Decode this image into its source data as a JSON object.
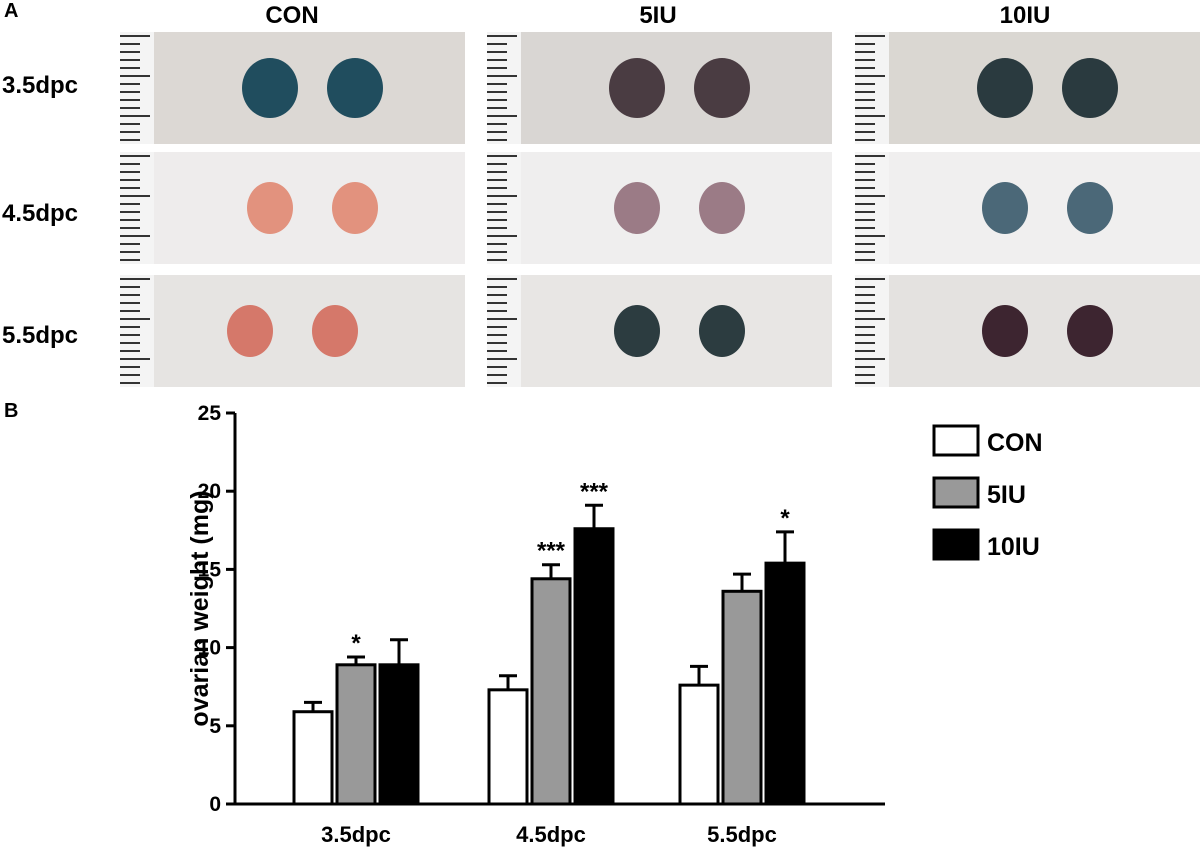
{
  "panel_a": {
    "letter": "A",
    "columns": [
      "CON",
      "5IU",
      "10IU"
    ],
    "rows": [
      "3.5dpc",
      "4.5dpc",
      "5.5dpc"
    ],
    "photos": [
      [
        "#204d5e",
        "#4a3c42",
        "#2a3a3f"
      ],
      [
        "#e2927e",
        "#9b7b86",
        "#4b6878"
      ],
      [
        "#d5786a",
        "#2c3c40",
        "#3d2530"
      ]
    ]
  },
  "panel_b": {
    "letter": "B"
  },
  "chart_data": {
    "type": "bar",
    "categories": [
      "3.5dpc",
      "4.5dpc",
      "5.5dpc"
    ],
    "ylabel": "ovarian weight (mg)",
    "ylim": [
      0,
      25
    ],
    "yticks": [
      "0",
      "5",
      "10",
      "15",
      "20",
      "25"
    ],
    "legend_position": "top-right",
    "series": [
      {
        "name": "CON",
        "color": "#ffffff",
        "values": [
          5.9,
          7.3,
          7.6
        ],
        "errors": [
          0.6,
          0.9,
          1.2
        ],
        "significance": [
          "",
          "",
          ""
        ]
      },
      {
        "name": "5IU",
        "color": "#999999",
        "values": [
          8.9,
          14.4,
          13.6
        ],
        "errors": [
          0.5,
          0.9,
          1.1
        ],
        "significance": [
          "*",
          "***",
          ""
        ]
      },
      {
        "name": "10IU",
        "color": "#000000",
        "values": [
          8.9,
          17.6,
          15.4
        ],
        "errors": [
          1.6,
          1.5,
          2.0
        ],
        "significance": [
          "",
          "***",
          "*"
        ]
      }
    ]
  }
}
